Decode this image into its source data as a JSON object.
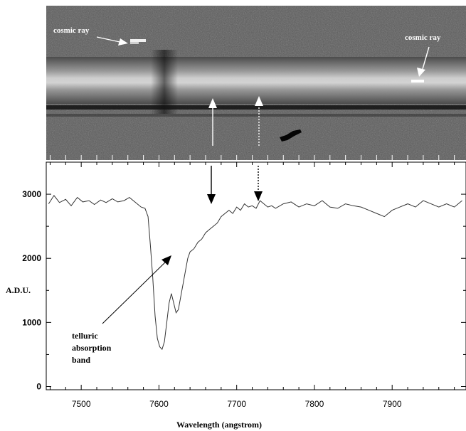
{
  "chart_data": {
    "type": "line",
    "xlabel": "Wavelength (angstrom)",
    "ylabel": "A.D.U.",
    "xlim": [
      7455,
      7995
    ],
    "ylim": [
      -50,
      3500
    ],
    "xticks": [
      7500,
      7600,
      7700,
      7800,
      7900
    ],
    "yticks": [
      0,
      1000,
      2000,
      3000
    ],
    "series": [
      {
        "x": [
          7458,
          7465,
          7472,
          7480,
          7487,
          7495,
          7502,
          7510,
          7517,
          7525,
          7532,
          7540,
          7547,
          7555,
          7562,
          7570,
          7577,
          7582,
          7586,
          7589,
          7592,
          7595,
          7598,
          7601,
          7604,
          7607,
          7610,
          7613,
          7616,
          7619,
          7622,
          7625,
          7628,
          7631,
          7634,
          7637,
          7640,
          7645,
          7650,
          7655,
          7660,
          7665,
          7670,
          7675,
          7680,
          7685,
          7690,
          7695,
          7700,
          7705,
          7710,
          7715,
          7720,
          7725,
          7730,
          7735,
          7740,
          7745,
          7750,
          7760,
          7770,
          7780,
          7790,
          7800,
          7810,
          7820,
          7830,
          7840,
          7850,
          7860,
          7870,
          7880,
          7890,
          7900,
          7910,
          7920,
          7930,
          7940,
          7950,
          7960,
          7970,
          7980,
          7990
        ],
        "values": [
          2850,
          2980,
          2870,
          2920,
          2820,
          2950,
          2880,
          2900,
          2840,
          2910,
          2870,
          2930,
          2880,
          2900,
          2950,
          2870,
          2800,
          2780,
          2650,
          2200,
          1700,
          1100,
          750,
          620,
          580,
          700,
          1000,
          1300,
          1450,
          1300,
          1150,
          1200,
          1400,
          1600,
          1800,
          2000,
          2100,
          2150,
          2250,
          2300,
          2400,
          2450,
          2500,
          2550,
          2650,
          2700,
          2750,
          2700,
          2800,
          2750,
          2850,
          2800,
          2820,
          2780,
          2900,
          2850,
          2800,
          2820,
          2780,
          2850,
          2880,
          2800,
          2850,
          2820,
          2900,
          2800,
          2780,
          2850,
          2820,
          2800,
          2750,
          2700,
          2650,
          2750,
          2800,
          2850,
          2800,
          2900,
          2850,
          2800,
          2850,
          2800,
          2900
        ]
      }
    ],
    "annotations": [
      {
        "text": "cosmic ray",
        "position": "upper-left of spectrum image"
      },
      {
        "text": "cosmic ray",
        "position": "upper-right of spectrum image"
      },
      {
        "text": "telluric absorption band",
        "target_wavelength": 7600
      }
    ],
    "markers": [
      {
        "style": "solid",
        "x": 7672
      },
      {
        "style": "dotted",
        "x": 7733
      }
    ],
    "image_panel": "2D spectrum, grayscale, above the plot"
  },
  "labels": {
    "cosmic1": "cosmic ray",
    "cosmic2": "cosmic ray",
    "telluric_lines": [
      "telluric",
      "absorption",
      "band"
    ]
  },
  "colors": {
    "line": "#333333",
    "arrow_light": "#ffffff",
    "arrow_dark": "#000000"
  }
}
